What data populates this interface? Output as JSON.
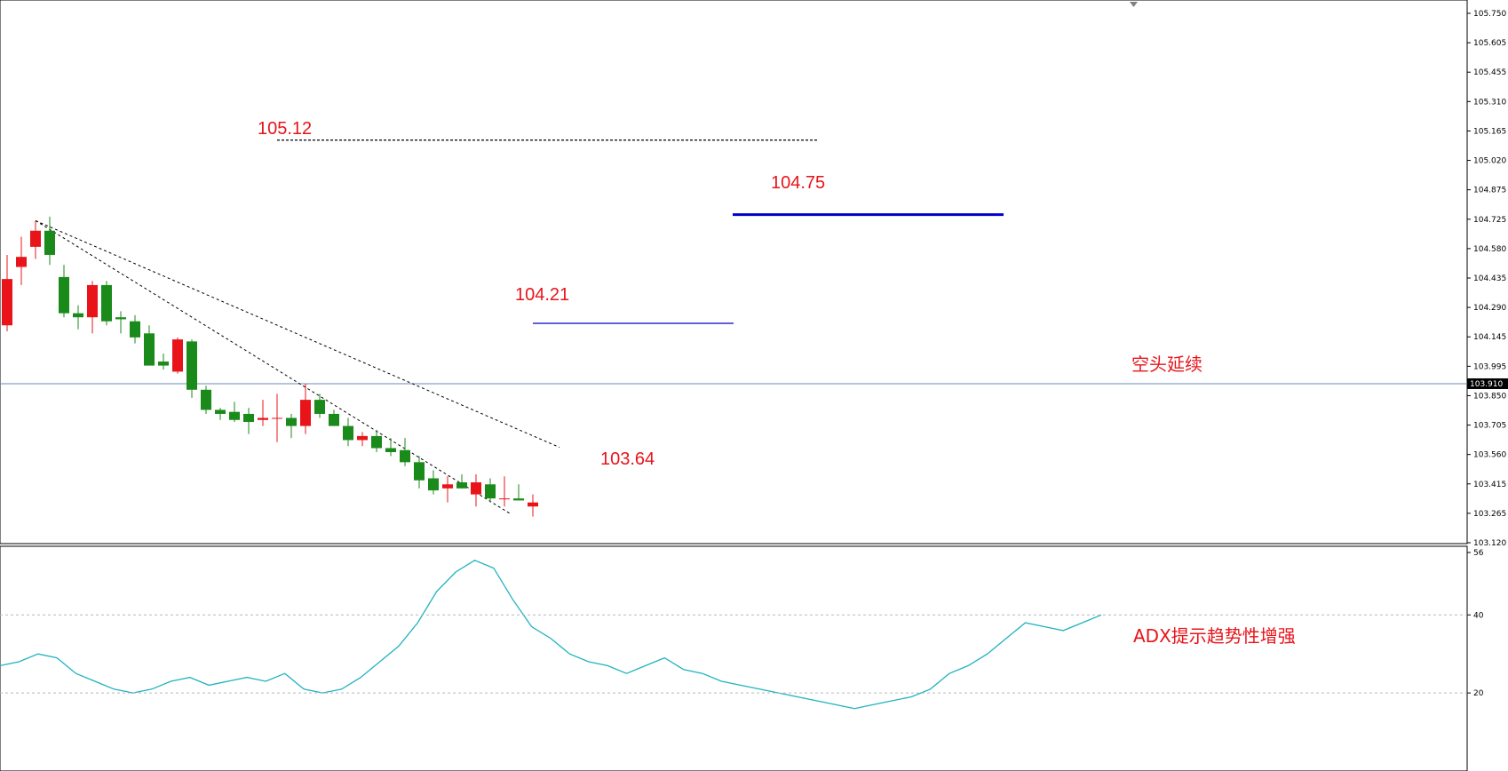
{
  "chart_data": [
    {
      "type": "candlestick",
      "ylim": [
        103.12,
        105.75
      ],
      "y_ticks": [
        "105.750",
        "105.605",
        "105.455",
        "105.310",
        "105.165",
        "105.020",
        "104.875",
        "104.725",
        "104.580",
        "104.435",
        "104.290",
        "104.145",
        "103.995",
        "103.850",
        "103.705",
        "103.560",
        "103.415",
        "103.265",
        "103.120"
      ],
      "current_price": "103.910",
      "current_price_value": 103.91,
      "colors": {
        "up": "#e8141a",
        "down": "#1a8a1a",
        "hline_blue": "#0000cc",
        "price_line": "#6b88b5"
      },
      "candles": [
        {
          "o": 104.2,
          "h": 104.55,
          "l": 104.17,
          "c": 104.43
        },
        {
          "o": 104.49,
          "h": 104.64,
          "l": 104.4,
          "c": 104.54
        },
        {
          "o": 104.59,
          "h": 104.72,
          "l": 104.53,
          "c": 104.67
        },
        {
          "o": 104.67,
          "h": 104.74,
          "l": 104.5,
          "c": 104.55
        },
        {
          "o": 104.44,
          "h": 104.5,
          "l": 104.24,
          "c": 104.26
        },
        {
          "o": 104.26,
          "h": 104.3,
          "l": 104.18,
          "c": 104.24
        },
        {
          "o": 104.24,
          "h": 104.42,
          "l": 104.16,
          "c": 104.4
        },
        {
          "o": 104.4,
          "h": 104.42,
          "l": 104.2,
          "c": 104.22
        },
        {
          "o": 104.24,
          "h": 104.27,
          "l": 104.16,
          "c": 104.23
        },
        {
          "o": 104.22,
          "h": 104.25,
          "l": 104.11,
          "c": 104.14
        },
        {
          "o": 104.16,
          "h": 104.2,
          "l": 104.0,
          "c": 104.0
        },
        {
          "o": 104.02,
          "h": 104.06,
          "l": 103.98,
          "c": 104.0
        },
        {
          "o": 103.97,
          "h": 104.14,
          "l": 103.96,
          "c": 104.13
        },
        {
          "o": 104.12,
          "h": 104.13,
          "l": 103.84,
          "c": 103.88
        },
        {
          "o": 103.88,
          "h": 103.9,
          "l": 103.76,
          "c": 103.78
        },
        {
          "o": 103.78,
          "h": 103.79,
          "l": 103.73,
          "c": 103.76
        },
        {
          "o": 103.77,
          "h": 103.82,
          "l": 103.72,
          "c": 103.73
        },
        {
          "o": 103.76,
          "h": 103.79,
          "l": 103.66,
          "c": 103.72
        },
        {
          "o": 103.73,
          "h": 103.83,
          "l": 103.7,
          "c": 103.74
        },
        {
          "o": 103.74,
          "h": 103.86,
          "l": 103.62,
          "c": 103.74
        },
        {
          "o": 103.74,
          "h": 103.76,
          "l": 103.64,
          "c": 103.7
        },
        {
          "o": 103.7,
          "h": 103.91,
          "l": 103.66,
          "c": 103.83
        },
        {
          "o": 103.83,
          "h": 103.86,
          "l": 103.74,
          "c": 103.76
        },
        {
          "o": 103.76,
          "h": 103.78,
          "l": 103.7,
          "c": 103.7
        },
        {
          "o": 103.7,
          "h": 103.74,
          "l": 103.6,
          "c": 103.63
        },
        {
          "o": 103.63,
          "h": 103.67,
          "l": 103.6,
          "c": 103.65
        },
        {
          "o": 103.65,
          "h": 103.68,
          "l": 103.57,
          "c": 103.59
        },
        {
          "o": 103.59,
          "h": 103.64,
          "l": 103.55,
          "c": 103.57
        },
        {
          "o": 103.58,
          "h": 103.64,
          "l": 103.5,
          "c": 103.52
        },
        {
          "o": 103.52,
          "h": 103.55,
          "l": 103.39,
          "c": 103.43
        },
        {
          "o": 103.44,
          "h": 103.48,
          "l": 103.36,
          "c": 103.38
        },
        {
          "o": 103.39,
          "h": 103.45,
          "l": 103.32,
          "c": 103.41
        },
        {
          "o": 103.42,
          "h": 103.46,
          "l": 103.39,
          "c": 103.39
        },
        {
          "o": 103.36,
          "h": 103.46,
          "l": 103.3,
          "c": 103.42
        },
        {
          "o": 103.41,
          "h": 103.44,
          "l": 103.32,
          "c": 103.34
        },
        {
          "o": 103.34,
          "h": 103.45,
          "l": 103.3,
          "c": 103.34
        },
        {
          "o": 103.34,
          "h": 103.41,
          "l": 103.33,
          "c": 103.33
        },
        {
          "o": 103.3,
          "h": 103.36,
          "l": 103.25,
          "c": 103.32
        }
      ],
      "horizontal_lines": [
        {
          "price": 105.12,
          "style": "dotted",
          "color": "#000000"
        },
        {
          "price": 104.75,
          "style": "solid",
          "color": "#0000cc"
        },
        {
          "price": 104.21,
          "style": "solid",
          "color": "#0000cc"
        }
      ],
      "annotations": [
        "105.12",
        "104.75",
        "104.21",
        "103.64",
        "空头延续"
      ]
    },
    {
      "type": "line",
      "indicator": "ADX",
      "ylim": [
        0,
        56
      ],
      "y_ticks": [
        "56",
        "40",
        "20"
      ],
      "levels": [
        40,
        20
      ],
      "color": "#20b2c0",
      "values": [
        27,
        28,
        30,
        29,
        25,
        23,
        21,
        20,
        21,
        23,
        24,
        22,
        23,
        24,
        23,
        25,
        21,
        20,
        21,
        24,
        28,
        32,
        38,
        46,
        51,
        54,
        52,
        44,
        37,
        34,
        30,
        28,
        27,
        25,
        27,
        29,
        26,
        25,
        23,
        22,
        21,
        20,
        19,
        18,
        17,
        16,
        17,
        18,
        19,
        21,
        25,
        27,
        30,
        34,
        38,
        37,
        36,
        38,
        40
      ]
    }
  ],
  "annotations": {
    "label_105_12": "105.12",
    "label_104_75": "104.75",
    "label_104_21": "104.21",
    "label_103_64": "103.64",
    "label_bear": "空头延续",
    "label_adx": "ADX提示趋势性增强"
  }
}
